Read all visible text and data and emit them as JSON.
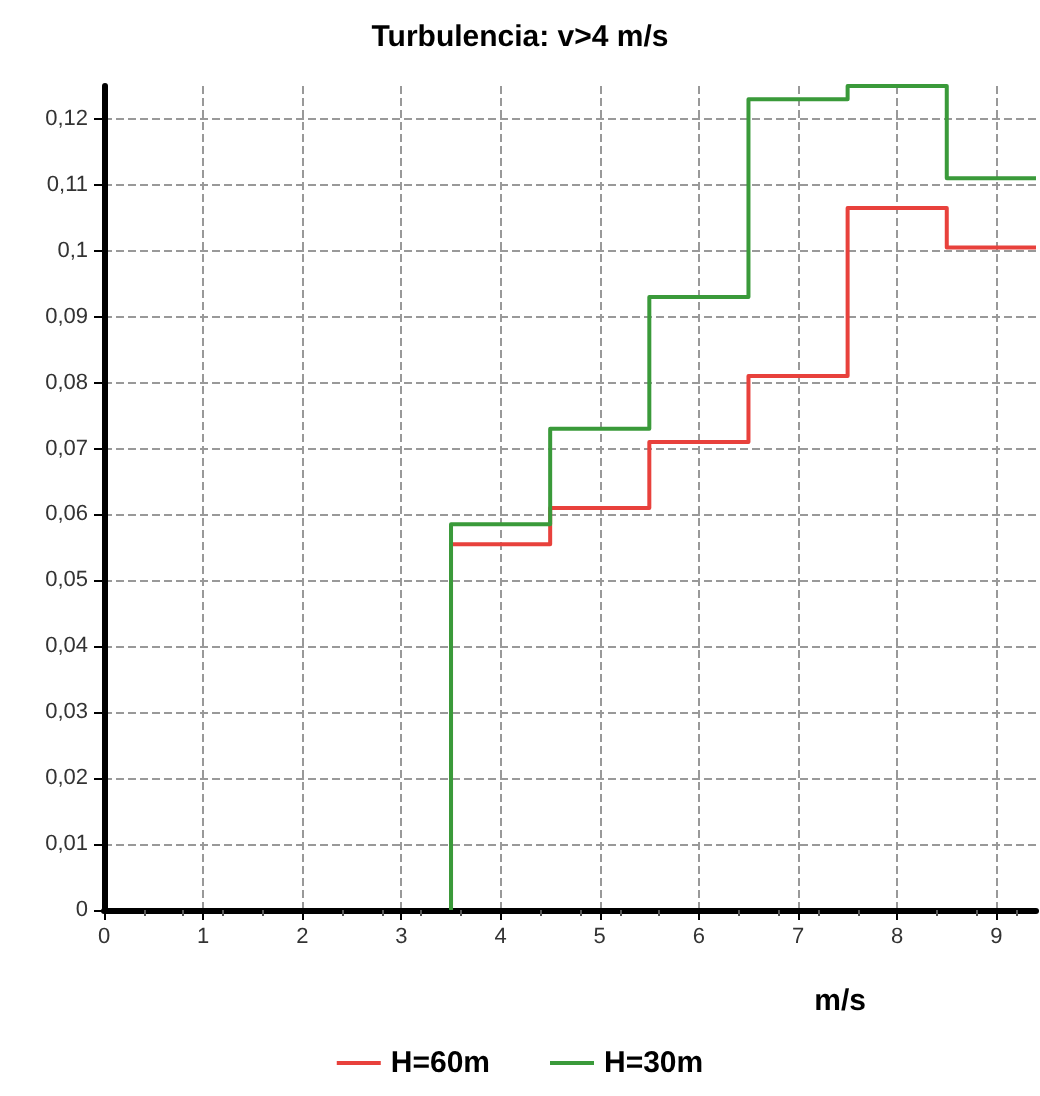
{
  "chart_data": {
    "type": "step",
    "title": "Turbulencia: v>4 m/s",
    "xlabel": "m/s",
    "series": [
      {
        "name": "H=60m",
        "color": "#e8413c",
        "x": [
          3.5,
          3.5,
          4.5,
          5.5,
          6.5,
          7.5,
          8.5,
          9.4
        ],
        "values": [
          0,
          0.0555,
          0.061,
          0.071,
          0.081,
          0.1065,
          0.1005,
          0.1005
        ]
      },
      {
        "name": "H=30m",
        "color": "#3a9a3a",
        "x": [
          3.5,
          3.5,
          4.5,
          5.5,
          6.5,
          7.5,
          8.5,
          9.4
        ],
        "values": [
          0,
          0.0585,
          0.073,
          0.093,
          0.123,
          0.125,
          0.111,
          0.111
        ]
      }
    ],
    "xlim": [
      0,
      9.4
    ],
    "xticks": [
      0,
      1,
      2,
      3,
      4,
      5,
      6,
      7,
      8,
      9
    ],
    "ylim": [
      0,
      0.125
    ],
    "yticks": [
      0,
      {
        "value": 0.01,
        "label": "0,01"
      },
      {
        "value": 0.02,
        "label": "0,02"
      },
      {
        "value": 0.03,
        "label": "0,03"
      },
      {
        "value": 0.04,
        "label": "0,04"
      },
      {
        "value": 0.05,
        "label": "0,05"
      },
      {
        "value": 0.06,
        "label": "0,06"
      },
      {
        "value": 0.07,
        "label": "0,07"
      },
      {
        "value": 0.08,
        "label": "0,08"
      },
      {
        "value": 0.09,
        "label": "0,09"
      },
      {
        "value": 0.1,
        "label": "0,1"
      },
      {
        "value": 0.11,
        "label": "0,11"
      },
      {
        "value": 0.12,
        "label": "0,12"
      }
    ],
    "grid": true,
    "legend": "bottom",
    "marker": "none",
    "line_style": "solid"
  }
}
